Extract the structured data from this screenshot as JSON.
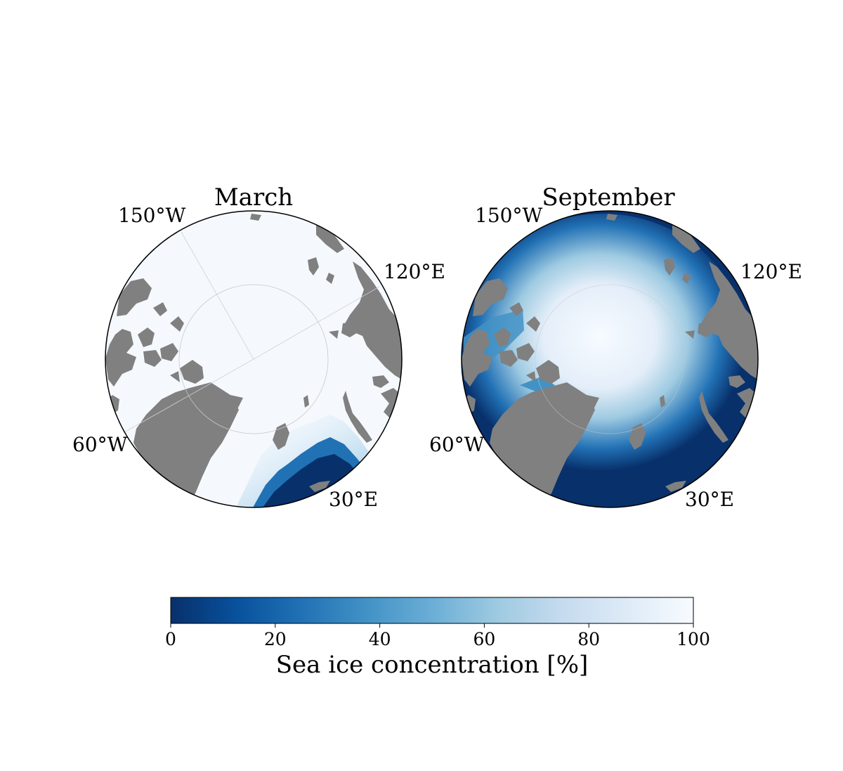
{
  "colors": {
    "land": "#808080",
    "border": "#000000",
    "colormap": [
      "#08306b",
      "#08519c",
      "#2171b5",
      "#4292c6",
      "#6baed6",
      "#9ecae1",
      "#c6dbef",
      "#deebf7",
      "#f7fbff"
    ]
  },
  "maps": [
    {
      "title": "March",
      "labels": {
        "lon_150w": "150°W",
        "lon_120e": "120°E",
        "lon_60w": "60°W",
        "lon_30e": "30°E"
      }
    },
    {
      "title": "September",
      "labels": {
        "lon_150w": "150°W",
        "lon_120e": "120°E",
        "lon_60w": "60°W",
        "lon_30e": "30°E"
      }
    }
  ],
  "colorbar": {
    "label": "Sea ice concentration [%]",
    "ticks": [
      "0",
      "20",
      "40",
      "60",
      "80",
      "100"
    ],
    "range": [
      0,
      100
    ]
  }
}
